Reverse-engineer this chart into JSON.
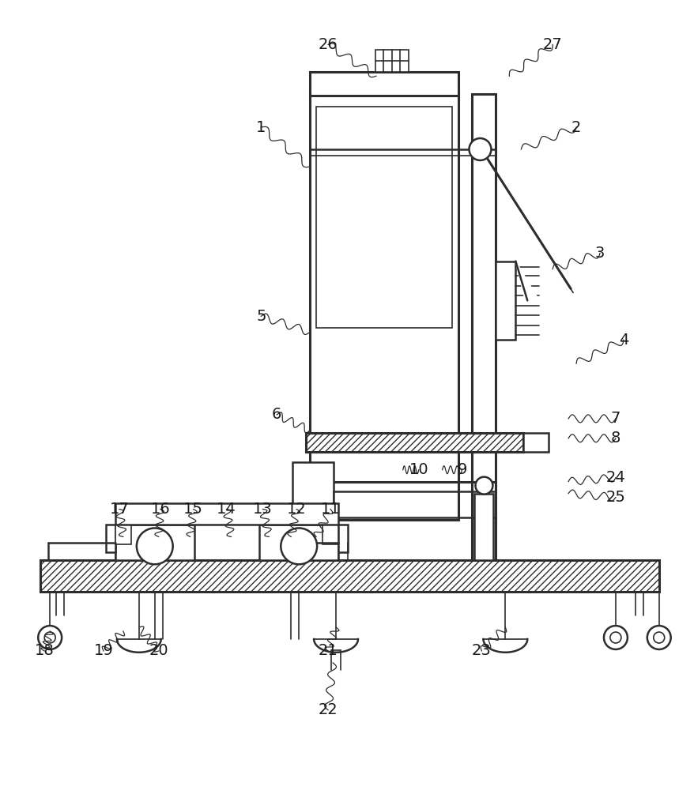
{
  "bg_color": "#ffffff",
  "line_color": "#2d2d2d",
  "label_color": "#1a1a1a",
  "fig_width": 8.79,
  "fig_height": 10.0
}
